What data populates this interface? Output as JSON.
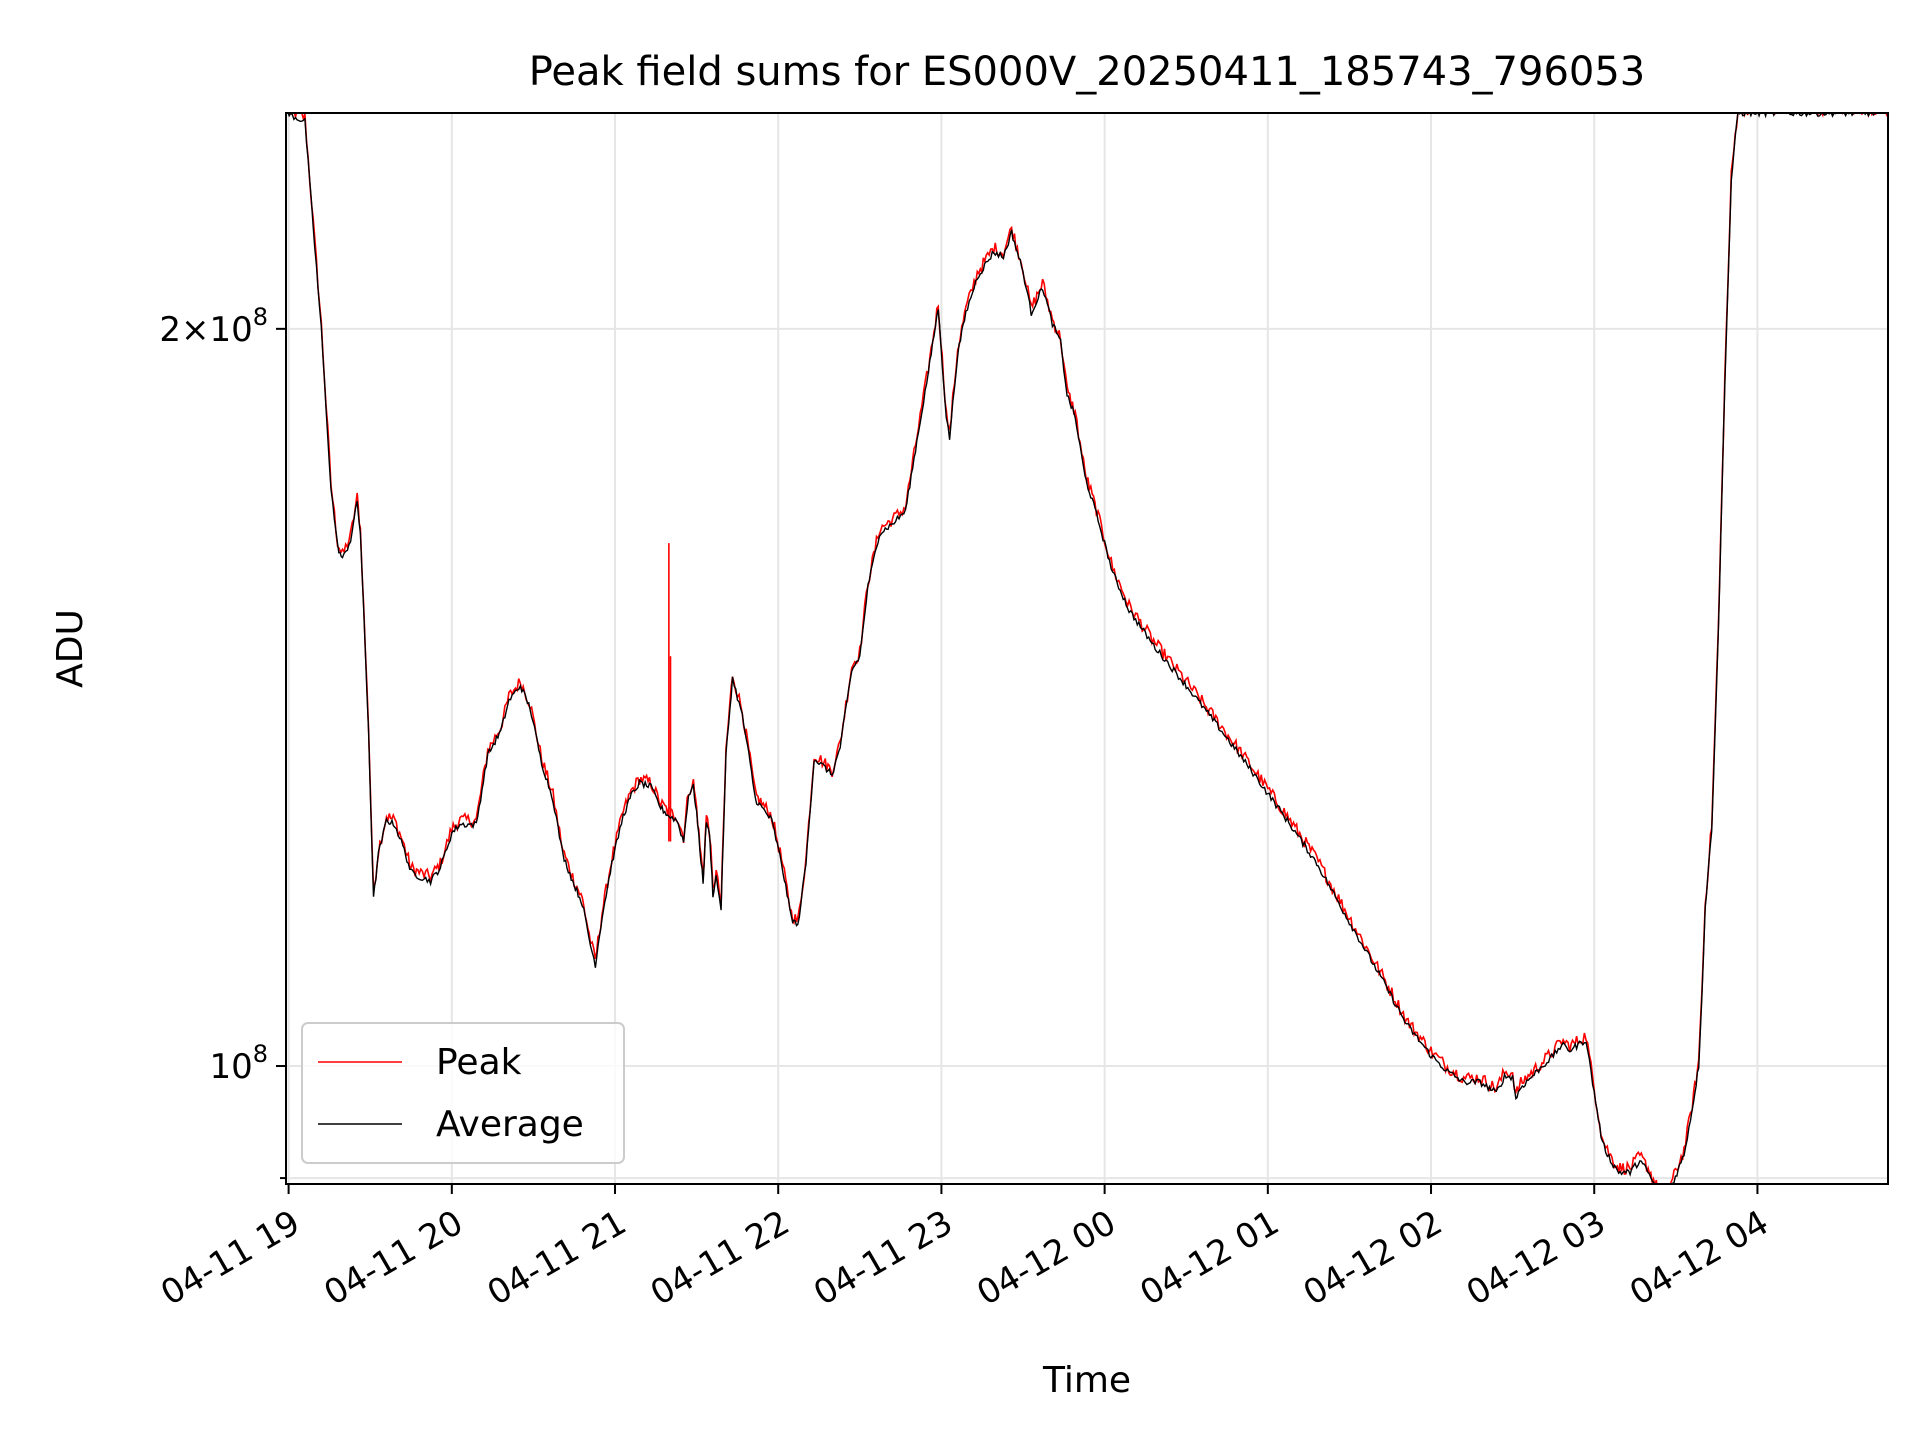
{
  "chart_data": {
    "type": "line",
    "title": "Peak field sums for ES000V_20250411_185743_796053",
    "xlabel": "Time",
    "ylabel": "ADU",
    "x_ticks": [
      "04-11 19",
      "04-11 20",
      "04-11 21",
      "04-11 22",
      "04-11 23",
      "04-12 00",
      "04-12 01",
      "04-12 02",
      "04-12 03",
      "04-12 04"
    ],
    "x_tick_hours": [
      0,
      1,
      2,
      3,
      4,
      5,
      6,
      7,
      8,
      9
    ],
    "x_range_hours": [
      -0.016,
      9.8
    ],
    "y_scale": "log",
    "y_range": [
      89500000,
      245000000
    ],
    "y_major_ticks": [
      {
        "value": 100000000,
        "mantissa": "",
        "exponent": "8"
      },
      {
        "value": 200000000,
        "mantissa": "2",
        "exponent": "8"
      }
    ],
    "y_minor_ticks": [
      90000000
    ],
    "grid": true,
    "legend_position": "lower left",
    "series": [
      {
        "name": "Peak",
        "color": "#ff0000"
      },
      {
        "name": "Average",
        "color": "#000000"
      }
    ],
    "average_series": [
      [
        -0.016,
        245000000
      ],
      [
        0.1,
        243000000
      ],
      [
        0.2,
        200000000
      ],
      [
        0.26,
        172000000
      ],
      [
        0.3,
        163000000
      ],
      [
        0.33,
        161000000
      ],
      [
        0.38,
        164000000
      ],
      [
        0.42,
        170000000
      ],
      [
        0.44,
        165000000
      ],
      [
        0.49,
        137000000
      ],
      [
        0.52,
        117000000
      ],
      [
        0.55,
        122000000
      ],
      [
        0.6,
        126000000
      ],
      [
        0.65,
        125500000
      ],
      [
        0.7,
        123000000
      ],
      [
        0.75,
        120000000
      ],
      [
        0.8,
        119500000
      ],
      [
        0.87,
        119000000
      ],
      [
        0.93,
        120500000
      ],
      [
        1.0,
        124500000
      ],
      [
        1.05,
        125500000
      ],
      [
        1.15,
        125500000
      ],
      [
        1.22,
        134000000
      ],
      [
        1.3,
        137000000
      ],
      [
        1.35,
        141000000
      ],
      [
        1.42,
        143000000
      ],
      [
        1.48,
        140000000
      ],
      [
        1.55,
        133000000
      ],
      [
        1.62,
        128500000
      ],
      [
        1.68,
        122000000
      ],
      [
        1.74,
        119000000
      ],
      [
        1.8,
        116500000
      ],
      [
        1.85,
        112000000
      ],
      [
        1.88,
        110000000
      ],
      [
        1.92,
        115000000
      ],
      [
        1.98,
        121000000
      ],
      [
        2.05,
        126500000
      ],
      [
        2.1,
        129000000
      ],
      [
        2.15,
        130500000
      ],
      [
        2.22,
        130000000
      ],
      [
        2.28,
        127500000
      ],
      [
        2.33,
        126500000
      ],
      [
        2.38,
        126000000
      ],
      [
        2.42,
        123500000
      ],
      [
        2.45,
        129000000
      ],
      [
        2.48,
        130000000
      ],
      [
        2.5,
        127000000
      ],
      [
        2.52,
        122500000
      ],
      [
        2.54,
        119000000
      ],
      [
        2.56,
        126000000
      ],
      [
        2.58,
        124000000
      ],
      [
        2.6,
        117500000
      ],
      [
        2.62,
        119500000
      ],
      [
        2.65,
        116000000
      ],
      [
        2.68,
        134000000
      ],
      [
        2.72,
        144000000
      ],
      [
        2.78,
        139000000
      ],
      [
        2.82,
        134000000
      ],
      [
        2.86,
        128500000
      ],
      [
        2.9,
        127500000
      ],
      [
        2.96,
        126000000
      ],
      [
        3.02,
        121000000
      ],
      [
        3.08,
        115000000
      ],
      [
        3.12,
        114000000
      ],
      [
        3.17,
        121000000
      ],
      [
        3.22,
        133500000
      ],
      [
        3.28,
        132500000
      ],
      [
        3.33,
        131500000
      ],
      [
        3.38,
        135000000
      ],
      [
        3.45,
        145000000
      ],
      [
        3.5,
        147000000
      ],
      [
        3.55,
        157000000
      ],
      [
        3.62,
        165000000
      ],
      [
        3.7,
        166500000
      ],
      [
        3.78,
        168500000
      ],
      [
        3.85,
        180000000
      ],
      [
        3.92,
        192000000
      ],
      [
        3.98,
        204000000
      ],
      [
        4.03,
        184000000
      ],
      [
        4.05,
        180500000
      ],
      [
        4.1,
        195500000
      ],
      [
        4.15,
        203000000
      ],
      [
        4.22,
        210000000
      ],
      [
        4.32,
        215000000
      ],
      [
        4.38,
        214000000
      ],
      [
        4.43,
        219000000
      ],
      [
        4.5,
        211000000
      ],
      [
        4.55,
        203000000
      ],
      [
        4.62,
        208000000
      ],
      [
        4.68,
        201000000
      ],
      [
        4.73,
        197500000
      ],
      [
        4.77,
        188000000
      ],
      [
        4.82,
        184000000
      ],
      [
        4.88,
        174000000
      ],
      [
        4.95,
        168000000
      ],
      [
        5.05,
        159000000
      ],
      [
        5.15,
        153500000
      ],
      [
        5.3,
        148500000
      ],
      [
        5.5,
        143000000
      ],
      [
        5.7,
        137500000
      ],
      [
        5.9,
        132000000
      ],
      [
        6.1,
        126500000
      ],
      [
        6.3,
        121000000
      ],
      [
        6.5,
        114500000
      ],
      [
        6.7,
        108500000
      ],
      [
        6.85,
        104000000
      ],
      [
        7.0,
        101000000
      ],
      [
        7.1,
        99500000
      ],
      [
        7.2,
        98500000
      ],
      [
        7.3,
        98500000
      ],
      [
        7.35,
        98000000
      ],
      [
        7.4,
        97500000
      ],
      [
        7.45,
        99000000
      ],
      [
        7.5,
        99000000
      ],
      [
        7.52,
        97000000
      ],
      [
        7.55,
        98000000
      ],
      [
        7.65,
        99500000
      ],
      [
        7.75,
        101000000
      ],
      [
        7.8,
        102000000
      ],
      [
        7.85,
        101500000
      ],
      [
        7.9,
        102000000
      ],
      [
        7.95,
        102500000
      ],
      [
        8.0,
        97500000
      ],
      [
        8.05,
        93000000
      ],
      [
        8.1,
        91500000
      ],
      [
        8.15,
        90500000
      ],
      [
        8.22,
        90500000
      ],
      [
        8.28,
        91500000
      ],
      [
        8.33,
        90500000
      ],
      [
        8.38,
        89000000
      ],
      [
        8.42,
        87500000
      ],
      [
        8.48,
        89500000
      ],
      [
        8.55,
        92000000
      ],
      [
        8.6,
        96000000
      ],
      [
        8.64,
        100000000
      ],
      [
        8.66,
        107000000
      ],
      [
        8.68,
        116000000
      ],
      [
        8.72,
        125000000
      ],
      [
        8.76,
        150000000
      ],
      [
        8.8,
        190000000
      ],
      [
        8.84,
        230000000
      ],
      [
        8.88,
        245000000
      ],
      [
        9.8,
        245000000
      ]
    ],
    "peak_spike": {
      "x": 2.33,
      "y": 163500000,
      "secondary_x": 2.34,
      "secondary_y": 147000000
    }
  }
}
